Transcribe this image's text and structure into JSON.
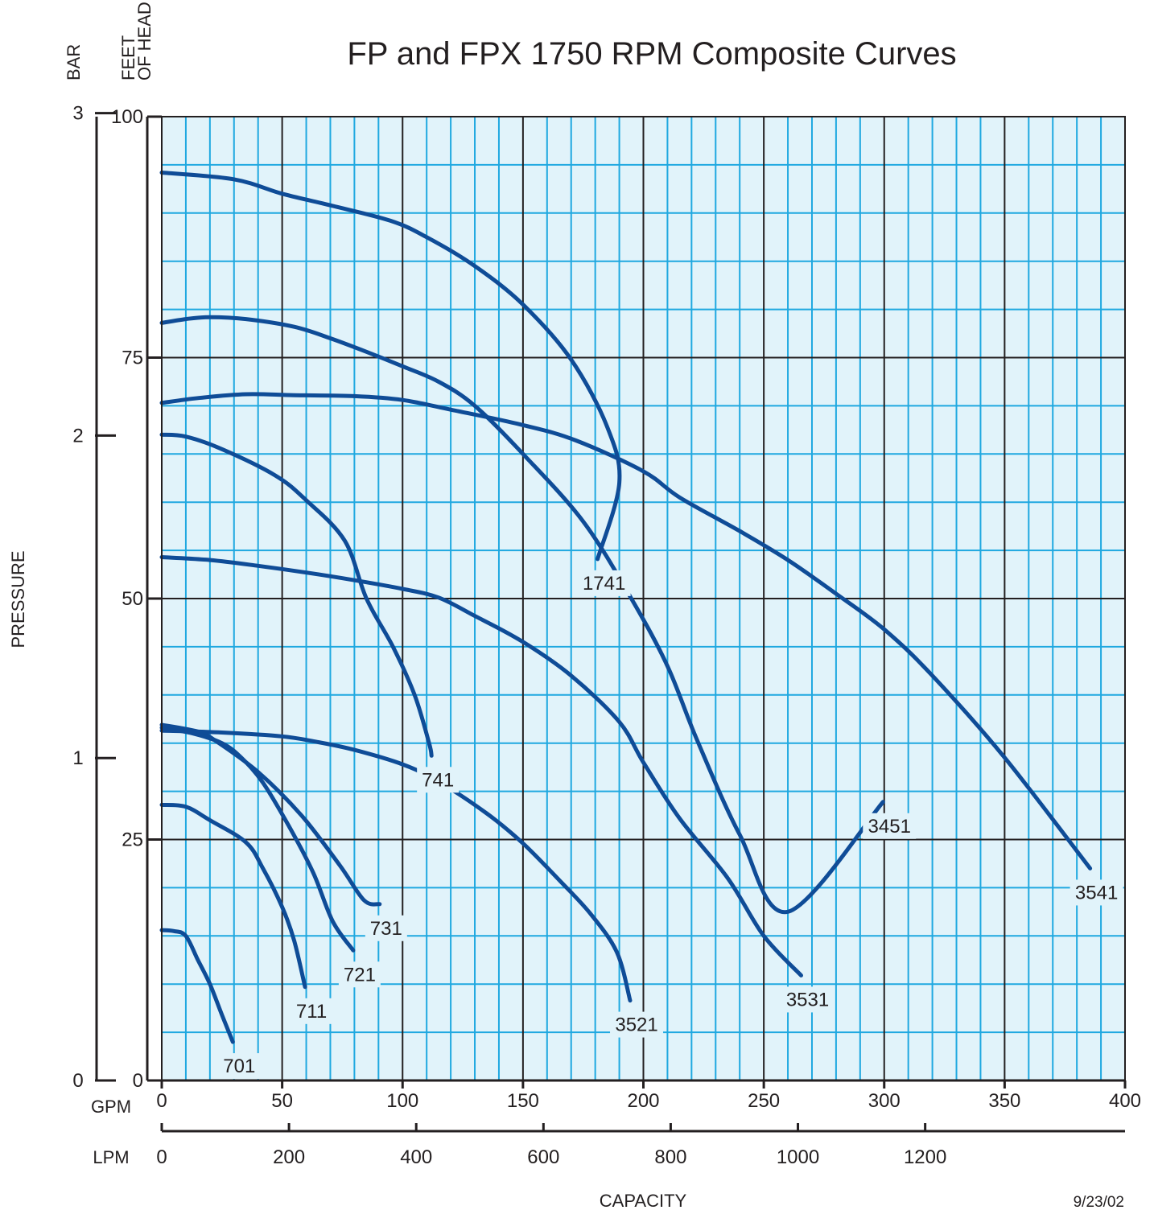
{
  "chart_data": {
    "type": "line",
    "title": "FP and FPX 1750 RPM Composite Curves",
    "ylabel": "PRESSURE",
    "xlabel": "CAPACITY",
    "date_note": "9/23/02",
    "y_unit_labels": {
      "bar": "BAR",
      "feet_line1": "FEET",
      "feet_line2": "OF HEAD"
    },
    "x_unit_labels": {
      "gpm": "GPM",
      "lpm": "LPM"
    },
    "xlim": [
      0,
      400
    ],
    "ylim": [
      0,
      100
    ],
    "x_ticks_gpm": [
      0,
      50,
      100,
      150,
      200,
      250,
      300,
      350,
      400
    ],
    "y_ticks_feet": [
      0,
      25,
      50,
      75,
      100
    ],
    "y_ticks_bar": [
      0,
      1,
      2,
      3
    ],
    "x_ticks_lpm": [
      0,
      200,
      400,
      600,
      800,
      1000,
      1200
    ],
    "grid": true,
    "colors": {
      "background": "#e1f3fa",
      "minor_grid": "#1fa8e0",
      "major_grid": "#231f20",
      "curve": "#0f4c97"
    },
    "series": [
      {
        "name": "701",
        "points": [
          [
            0,
            15.6
          ],
          [
            5,
            15.5
          ],
          [
            10,
            15.0
          ],
          [
            15,
            12.5
          ],
          [
            20,
            10.0
          ],
          [
            25,
            6.8
          ],
          [
            29.5,
            4.0
          ]
        ]
      },
      {
        "name": "711",
        "points": [
          [
            0,
            28.6
          ],
          [
            10,
            28.4
          ],
          [
            20,
            27.0
          ],
          [
            35,
            24.7
          ],
          [
            42,
            22.0
          ],
          [
            50,
            18.0
          ],
          [
            55,
            14.5
          ],
          [
            59.5,
            9.7
          ]
        ]
      },
      {
        "name": "721",
        "points": [
          [
            0,
            36.6
          ],
          [
            13,
            36.0
          ],
          [
            25,
            35.0
          ],
          [
            33,
            33.5
          ],
          [
            42,
            30.9
          ],
          [
            53,
            26.3
          ],
          [
            63,
            21.5
          ],
          [
            71,
            16.5
          ],
          [
            79.5,
            13.5
          ]
        ]
      },
      {
        "name": "731",
        "points": [
          [
            0,
            36.9
          ],
          [
            15,
            36.2
          ],
          [
            22,
            35.3
          ],
          [
            40,
            32.0
          ],
          [
            58,
            27.5
          ],
          [
            74,
            22.3
          ],
          [
            84,
            18.7
          ],
          [
            90.5,
            18.3
          ]
        ]
      },
      {
        "name": "741",
        "points": [
          [
            0,
            67.0
          ],
          [
            10,
            66.8
          ],
          [
            25,
            65.5
          ],
          [
            47,
            62.8
          ],
          [
            60,
            60.2
          ],
          [
            76,
            56.0
          ],
          [
            85,
            50.0
          ],
          [
            96,
            45.0
          ],
          [
            105,
            40.0
          ],
          [
            111,
            35.0
          ],
          [
            112,
            33.7
          ]
        ]
      },
      {
        "name": "1741",
        "points": [
          [
            0,
            94.2
          ],
          [
            30,
            93.5
          ],
          [
            50,
            92.0
          ],
          [
            70,
            90.8
          ],
          [
            95,
            89.2
          ],
          [
            110,
            87.5
          ],
          [
            130,
            84.5
          ],
          [
            150,
            80.5
          ],
          [
            170,
            74.8
          ],
          [
            185,
            67.8
          ],
          [
            190,
            62.0
          ],
          [
            181,
            54.1
          ]
        ]
      },
      {
        "name": "3451",
        "points": [
          [
            0,
            78.6
          ],
          [
            10,
            79.0
          ],
          [
            20,
            79.2
          ],
          [
            35,
            79.0
          ],
          [
            55,
            78.2
          ],
          [
            70,
            77.0
          ],
          [
            85,
            75.6
          ],
          [
            100,
            74.1
          ],
          [
            115,
            72.5
          ],
          [
            130,
            70.0
          ],
          [
            150,
            65.0
          ],
          [
            175,
            58.0
          ],
          [
            195,
            50.0
          ],
          [
            210,
            43.0
          ],
          [
            222,
            35.5
          ],
          [
            240,
            25.5
          ],
          [
            260,
            17.5
          ],
          [
            299.5,
            28.9
          ]
        ]
      },
      {
        "name": "3521",
        "points": [
          [
            0,
            36.3
          ],
          [
            25,
            36.1
          ],
          [
            50,
            35.7
          ],
          [
            65,
            35.1
          ],
          [
            80,
            34.3
          ],
          [
            100,
            32.8
          ],
          [
            115,
            31.0
          ],
          [
            135,
            27.7
          ],
          [
            150,
            24.6
          ],
          [
            165,
            20.8
          ],
          [
            178,
            17.3
          ],
          [
            189,
            13.3
          ],
          [
            194.5,
            8.3
          ]
        ]
      },
      {
        "name": "3531",
        "points": [
          [
            0,
            54.3
          ],
          [
            20,
            54.0
          ],
          [
            40,
            53.4
          ],
          [
            60,
            52.7
          ],
          [
            80,
            51.9
          ],
          [
            100,
            51.0
          ],
          [
            115,
            50.1
          ],
          [
            130,
            48.2
          ],
          [
            150,
            45.5
          ],
          [
            170,
            42.0
          ],
          [
            190,
            37.2
          ],
          [
            200,
            33.0
          ],
          [
            215,
            27.2
          ],
          [
            235,
            21.0
          ],
          [
            250,
            15.0
          ],
          [
            265.5,
            10.9
          ]
        ]
      },
      {
        "name": "3541",
        "points": [
          [
            0,
            70.3
          ],
          [
            15,
            70.8
          ],
          [
            35,
            71.2
          ],
          [
            55,
            71.1
          ],
          [
            80,
            71.0
          ],
          [
            100,
            70.6
          ],
          [
            120,
            69.6
          ],
          [
            150,
            68.0
          ],
          [
            172,
            66.4
          ],
          [
            200,
            63.2
          ],
          [
            215,
            60.5
          ],
          [
            240,
            57.0
          ],
          [
            260,
            54.0
          ],
          [
            280,
            50.5
          ],
          [
            300,
            46.8
          ],
          [
            320,
            42.0
          ],
          [
            350,
            33.5
          ],
          [
            385.5,
            22.0
          ]
        ]
      }
    ]
  }
}
